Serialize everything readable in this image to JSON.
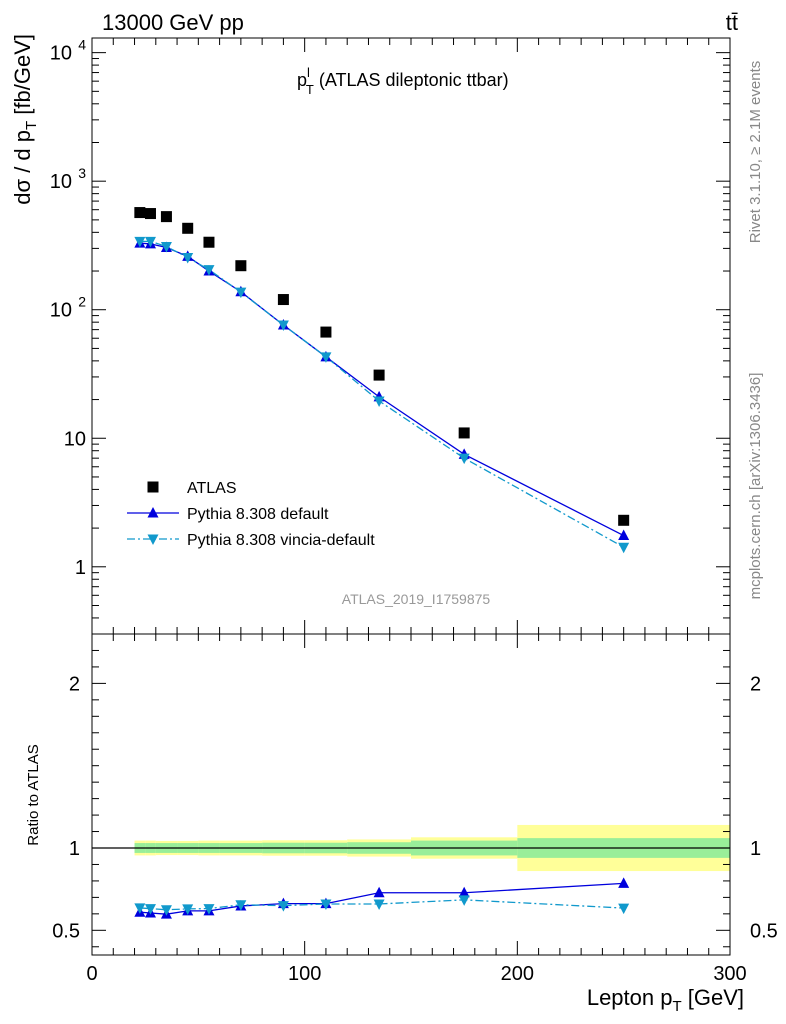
{
  "header": {
    "left": "13000 GeV pp",
    "right": "tt̄"
  },
  "side_text": {
    "rivet": "Rivet 3.1.10, ≥ 2.1M events",
    "mcplots": "mcplots.cern.ch [arXiv:1306.3436]"
  },
  "main_title": {
    "base": "p",
    "sup": "l",
    "sub": "T",
    "rest": " (ATLAS dileptonic ttbar)"
  },
  "analysis_id": "ATLAS_2019_I1759875",
  "chart_data": [
    {
      "type": "scatter",
      "panel": "main",
      "ylabel": {
        "pre": "dσ / d p",
        "sub": "T",
        "post": " [fb/GeV]"
      },
      "yscale": "log",
      "xlim": [
        0,
        300
      ],
      "ylim": [
        0.3,
        13000
      ],
      "ytick_labels": [
        {
          "v": 1,
          "t": "1"
        },
        {
          "v": 10,
          "t": "10"
        },
        {
          "v": 100,
          "base": "10",
          "exp": "2"
        },
        {
          "v": 1000,
          "base": "10",
          "exp": "3"
        },
        {
          "v": 10000,
          "base": "10",
          "exp": "4"
        }
      ],
      "legend_position": "lower-left",
      "series": [
        {
          "name": "ATLAS",
          "color": "#000000",
          "marker": "square",
          "x": [
            22.5,
            27.5,
            35,
            45,
            55,
            70,
            90,
            110,
            135,
            175,
            250
          ],
          "y": [
            570,
            560,
            530,
            430,
            335,
            220,
            120,
            67,
            31,
            11,
            2.3
          ]
        },
        {
          "name": "Pythia 8.308 default",
          "color": "#0000dd",
          "marker": "triangle-up",
          "line": "solid",
          "x": [
            22.5,
            27.5,
            35,
            45,
            55,
            70,
            90,
            110,
            135,
            175,
            250
          ],
          "y": [
            330,
            325,
            305,
            260,
            200,
            138,
            76,
            43,
            21,
            7.5,
            1.75
          ]
        },
        {
          "name": "Pythia 8.308 vincia-default",
          "color": "#1199cc",
          "marker": "triangle-down",
          "line": "dashdot",
          "x": [
            22.5,
            27.5,
            35,
            45,
            55,
            70,
            90,
            110,
            135,
            175,
            250
          ],
          "y": [
            340,
            340,
            310,
            255,
            205,
            137,
            76,
            43,
            19.5,
            7.0,
            1.42
          ]
        }
      ]
    },
    {
      "type": "scatter",
      "panel": "ratio",
      "ylabel": "Ratio to ATLAS",
      "xlabel": {
        "pre": "Lepton p",
        "sub": "T",
        "post": " [GeV]"
      },
      "xlim": [
        0,
        300
      ],
      "ylim": [
        0.35,
        2.3
      ],
      "xtick_labels": [
        "0",
        "100",
        "200",
        "300"
      ],
      "ytick_labels": [
        "0.5",
        "1",
        "2"
      ],
      "bands": [
        {
          "x0": 20,
          "x1": 25,
          "yellow": [
            0.955,
            1.045
          ],
          "green": [
            0.97,
            1.03
          ]
        },
        {
          "x0": 25,
          "x1": 30,
          "yellow": [
            0.955,
            1.045
          ],
          "green": [
            0.97,
            1.03
          ]
        },
        {
          "x0": 30,
          "x1": 40,
          "yellow": [
            0.957,
            1.043
          ],
          "green": [
            0.97,
            1.03
          ]
        },
        {
          "x0": 40,
          "x1": 50,
          "yellow": [
            0.957,
            1.043
          ],
          "green": [
            0.97,
            1.03
          ]
        },
        {
          "x0": 50,
          "x1": 60,
          "yellow": [
            0.955,
            1.045
          ],
          "green": [
            0.97,
            1.03
          ]
        },
        {
          "x0": 60,
          "x1": 80,
          "yellow": [
            0.955,
            1.045
          ],
          "green": [
            0.97,
            1.03
          ]
        },
        {
          "x0": 80,
          "x1": 100,
          "yellow": [
            0.953,
            1.047
          ],
          "green": [
            0.968,
            1.032
          ]
        },
        {
          "x0": 100,
          "x1": 120,
          "yellow": [
            0.953,
            1.047
          ],
          "green": [
            0.968,
            1.032
          ]
        },
        {
          "x0": 120,
          "x1": 150,
          "yellow": [
            0.948,
            1.052
          ],
          "green": [
            0.965,
            1.035
          ]
        },
        {
          "x0": 150,
          "x1": 200,
          "yellow": [
            0.935,
            1.065
          ],
          "green": [
            0.955,
            1.045
          ]
        },
        {
          "x0": 200,
          "x1": 300,
          "yellow": [
            0.86,
            1.14
          ],
          "green": [
            0.94,
            1.06
          ]
        }
      ],
      "series": [
        {
          "name": "Pythia 8.308 default",
          "color": "#0000dd",
          "marker": "triangle-up",
          "line": "solid",
          "x": [
            22.5,
            27.5,
            35,
            45,
            55,
            70,
            90,
            110,
            135,
            175,
            250
          ],
          "y": [
            0.61,
            0.605,
            0.598,
            0.618,
            0.618,
            0.648,
            0.662,
            0.662,
            0.728,
            0.728,
            0.785
          ],
          "err": [
            0.01,
            0.01,
            0.01,
            0.01,
            0.01,
            0.01,
            0.01,
            0.012,
            0.012,
            0.015,
            0.022
          ]
        },
        {
          "name": "Pythia 8.308 vincia-default",
          "color": "#1199cc",
          "marker": "triangle-down",
          "line": "dashdot",
          "x": [
            22.5,
            27.5,
            35,
            45,
            55,
            70,
            90,
            110,
            135,
            175,
            250
          ],
          "y": [
            0.636,
            0.632,
            0.625,
            0.63,
            0.632,
            0.655,
            0.65,
            0.66,
            0.66,
            0.685,
            0.635
          ],
          "err": [
            0.01,
            0.01,
            0.01,
            0.01,
            0.01,
            0.01,
            0.01,
            0.012,
            0.012,
            0.015,
            0.022
          ]
        }
      ]
    }
  ]
}
